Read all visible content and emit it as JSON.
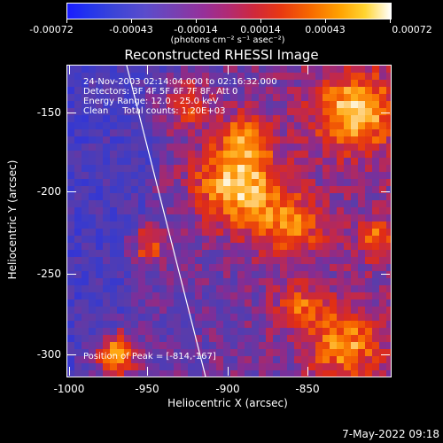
{
  "colorbar": {
    "tick_labels": [
      "-0.00072",
      "-0.00043",
      "-0.00014",
      "0.00014",
      "0.00043",
      "0.00072"
    ],
    "unit_label": "(photons cm⁻² s⁻¹ asec⁻²)",
    "colors": [
      "#1a1cff",
      "#7a3fb0",
      "#d0283a",
      "#f76800",
      "#ffffff"
    ]
  },
  "title": "Reconstructed RHESSI Image",
  "info": {
    "time": "24-Nov-2003 02:14:04.000 to 02:16:32.000",
    "detectors": "Detectors: 3F 4F 5F 6F 7F 8F, Att 0",
    "energy": "Energy Range: 12.0 - 25.0 keV",
    "clean": "Clean     Total counts: 1.20E+03",
    "peak": "Position of Peak = [-814,-167]"
  },
  "axes": {
    "xlabel": "Heliocentric X (arcsec)",
    "ylabel": "Heliocentric Y (arcsec)",
    "xticks": [
      "-1000",
      "-950",
      "-900",
      "-850"
    ],
    "yticks": [
      "-150",
      "-200",
      "-250",
      "-300"
    ]
  },
  "footer": "7-May-2022 09:18"
}
